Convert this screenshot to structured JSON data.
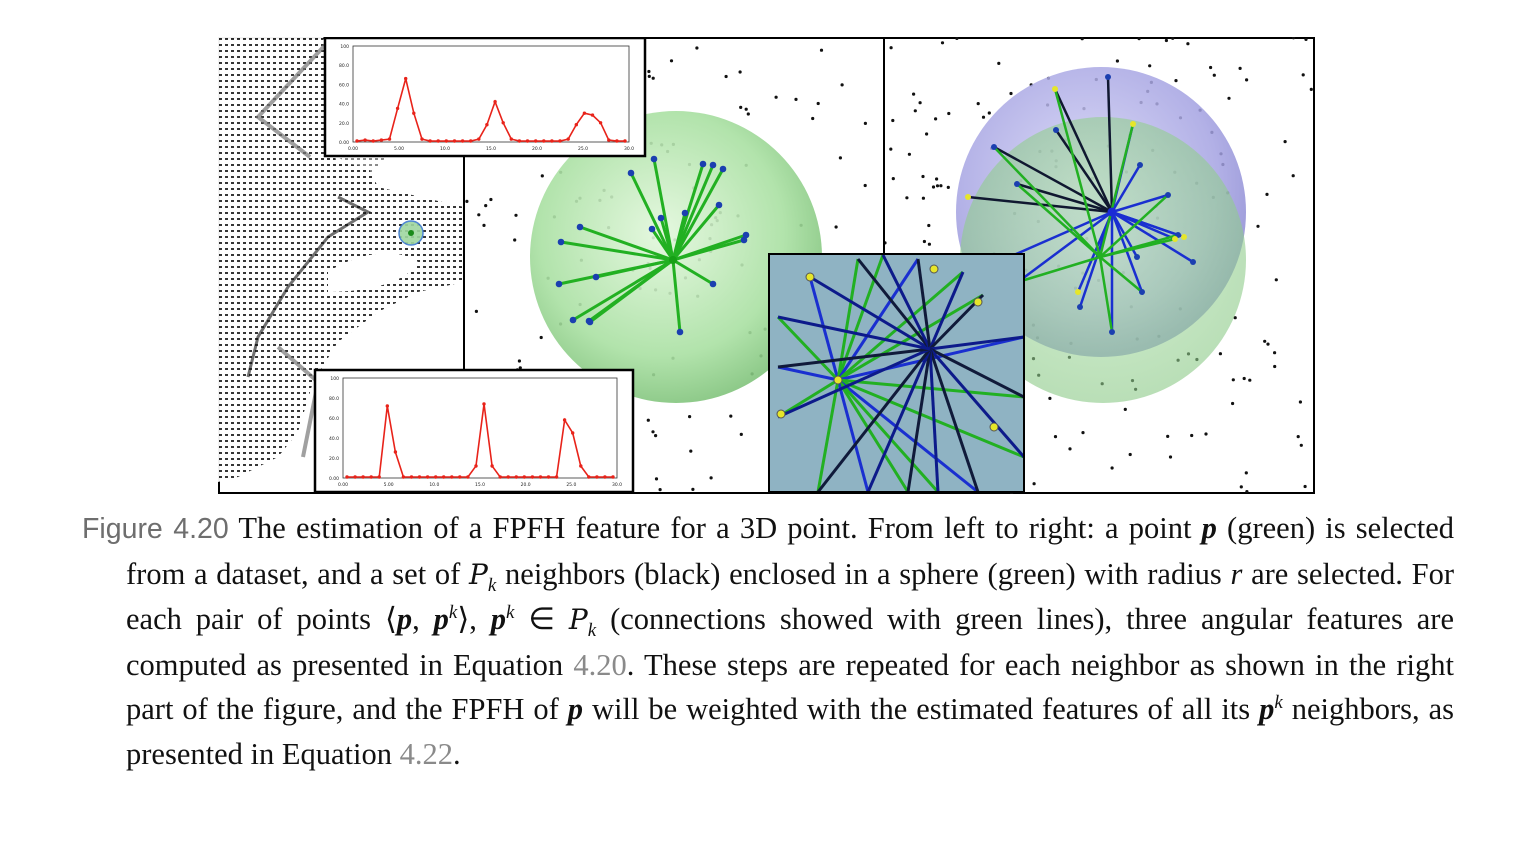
{
  "figure": {
    "histogram_top": {
      "yticks": [
        "100",
        "80.0",
        "60.0",
        "40.0",
        "20.0",
        "0.00"
      ],
      "xticks": [
        "0.00",
        "5.00",
        "10.0",
        "15.0",
        "20.0",
        "25.0",
        "30.0"
      ],
      "values": [
        1,
        2,
        1,
        2,
        3,
        35,
        66,
        30,
        3,
        1,
        1,
        1,
        1,
        1,
        1,
        3,
        18,
        42,
        20,
        3,
        1,
        1,
        1,
        1,
        1,
        1,
        3,
        18,
        30,
        28,
        20,
        2,
        1,
        1
      ],
      "line_color": "#e8231a"
    },
    "histogram_bottom": {
      "yticks": [
        "100",
        "80.0",
        "60.0",
        "40.0",
        "20.0",
        "0.00"
      ],
      "xticks": [
        "0.00",
        "5.00",
        "10.0",
        "15.0",
        "20.0",
        "25.0",
        "30.0"
      ],
      "values": [
        1,
        1,
        1,
        1,
        1,
        72,
        26,
        1,
        1,
        1,
        1,
        1,
        1,
        1,
        1,
        1,
        12,
        74,
        12,
        1,
        1,
        1,
        1,
        1,
        1,
        1,
        1,
        58,
        45,
        12,
        1,
        1,
        1,
        1
      ],
      "line_color": "#e8231a"
    },
    "colors": {
      "sphere_green": "#8fd48a",
      "sphere_purple": "#9a98dc",
      "neighbor_line": "#22b022",
      "pair_line": "#1a2fd0",
      "neighbor_point": "#1b3fb0",
      "highlight_point": "#e6e62a"
    }
  },
  "caption": {
    "label": "Figure 4.20",
    "t1": " The estimation of a FPFH feature for a 3D point. From left to right: a point ",
    "p1": "p",
    "t2": " (green) is selected from a dataset, and a set of ",
    "Pk1_P": "P",
    "Pk1_k": "k",
    "t3": " neighbors (black) enclosed in a sphere (green) with radius ",
    "r": "r",
    "t4": " are selected. For each pair of points ⟨",
    "p2": "p",
    "comma": ", ",
    "p3": "p",
    "k3": "k",
    "t5": "⟩, ",
    "p4": "p",
    "k4": "k",
    "t6": " ∈ ",
    "Pk2_P": "P",
    "Pk2_k": "k",
    "t7": " (connections showed with green lines), three angular features are computed as presented in Equation ",
    "ref1": "4.20",
    "t8": ". These steps are repeated for each neighbor as shown in the right part of the figure, and the FPFH of ",
    "p5": "p",
    "t9": " will be weighted with the estimated features of all its ",
    "p6": "p",
    "k6": "k",
    "t10": " neighbors, as presented in Equation ",
    "ref2": "4.22",
    "t11": "."
  }
}
